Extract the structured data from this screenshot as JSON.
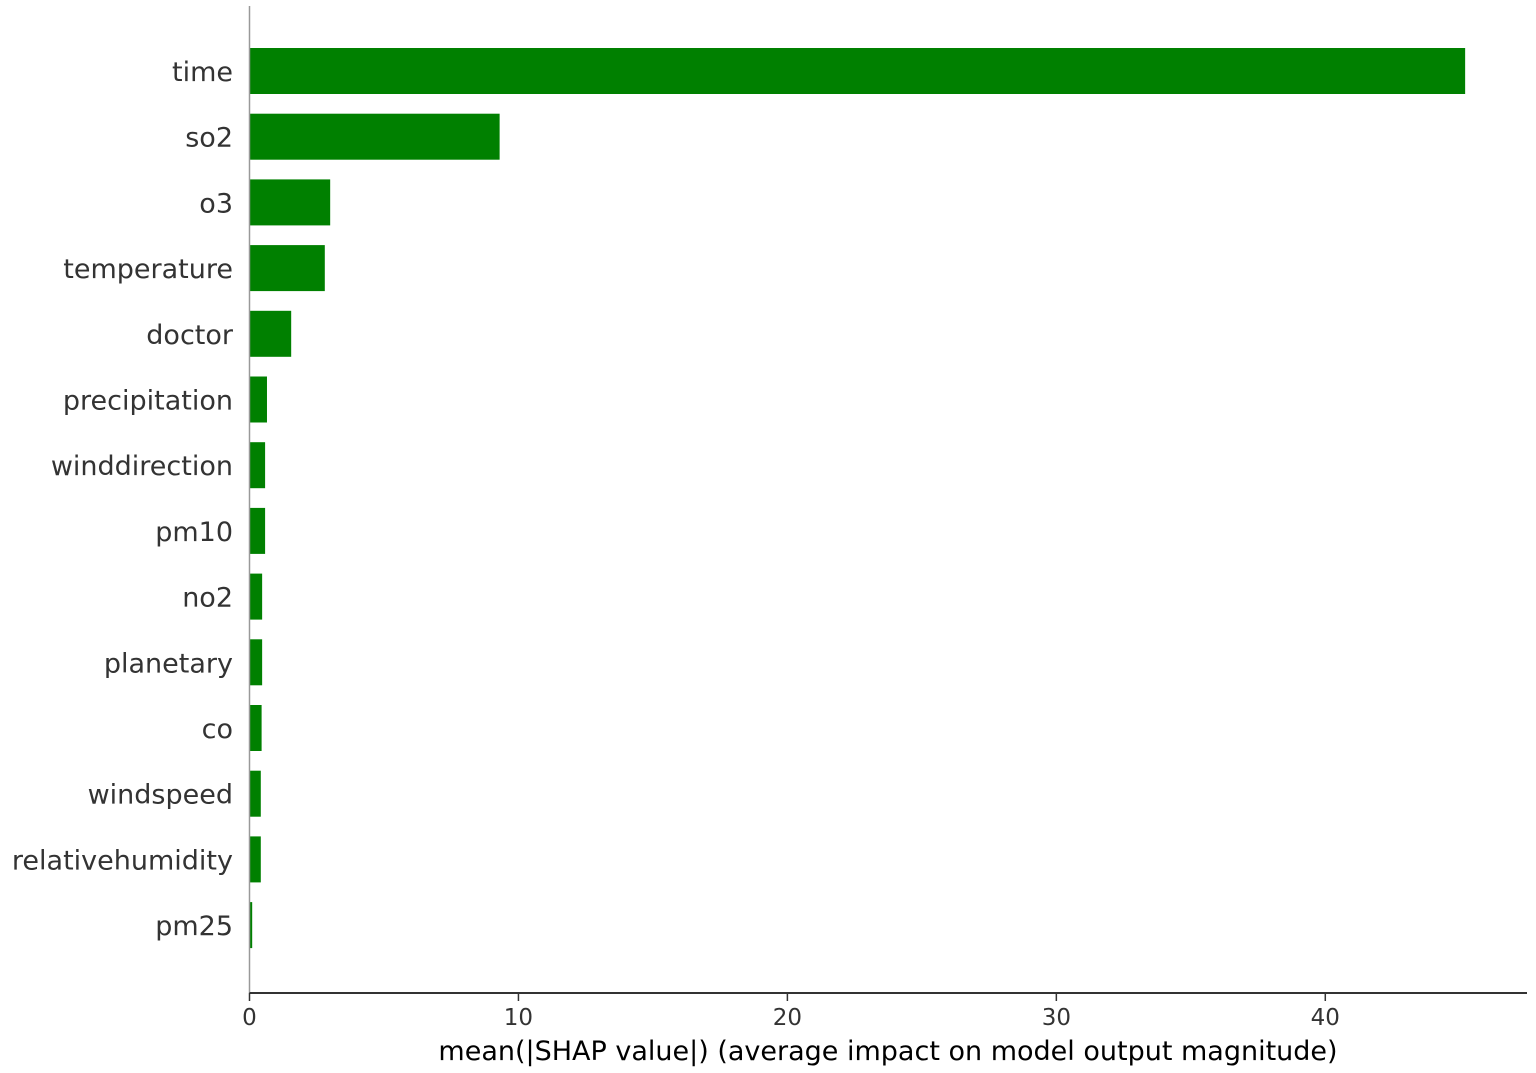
{
  "chart_data": {
    "type": "bar",
    "orientation": "horizontal",
    "title": "",
    "xlabel": "mean(|SHAP value|) (average impact on model output magnitude)",
    "ylabel": "",
    "categories": [
      "time",
      "so2",
      "o3",
      "temperature",
      "doctor",
      "precipitation",
      "winddirection",
      "pm10",
      "no2",
      "planetary",
      "co",
      "windspeed",
      "relativehumidity",
      "pm25"
    ],
    "values": [
      45.2,
      9.3,
      3.0,
      2.8,
      1.55,
      0.65,
      0.58,
      0.58,
      0.47,
      0.47,
      0.45,
      0.42,
      0.42,
      0.1
    ],
    "xlim": [
      0,
      47.5
    ],
    "xticks": [
      0,
      10,
      20,
      30,
      40
    ],
    "xtick_labels": [
      "0",
      "10",
      "20",
      "30",
      "40"
    ],
    "grid": false,
    "bar_color": "#008000",
    "axis_color": "#333333"
  }
}
